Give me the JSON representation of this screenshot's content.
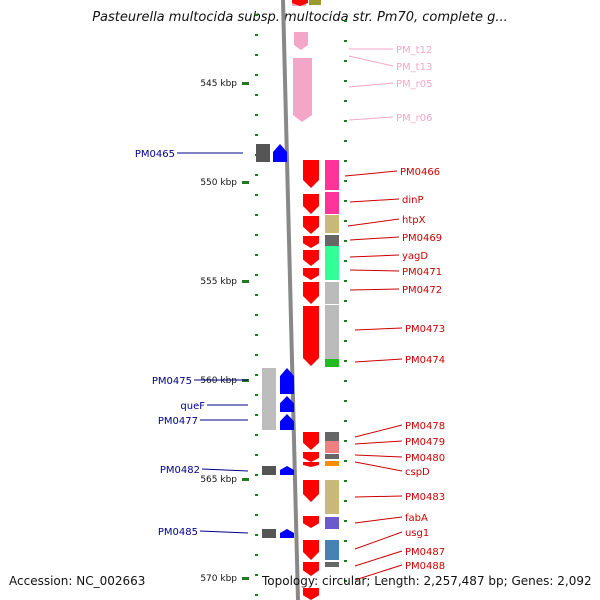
{
  "title": "Pasteurella multocida subsp. multocida str. Pm70, complete g...",
  "accession": "Accession: NC_002663",
  "topology": "Topology: circular; Length: 2,257,487 bp; Genes: 2,092",
  "colors": {
    "rna_pink": "#f4a6c8",
    "cds_red": "#ff0000",
    "left_blue": "#0000ff",
    "left_label": "#00008b",
    "right_label": "#cc0000",
    "tick_green": "#207a20",
    "backbone": "#888888"
  },
  "scale_labels": [
    {
      "kbp": 545,
      "label": "545 kbp"
    },
    {
      "kbp": 550,
      "label": "550 kbp"
    },
    {
      "kbp": 555,
      "label": "555 kbp"
    },
    {
      "kbp": 560,
      "label": "560 kbp"
    },
    {
      "kbp": 565,
      "label": "565 kbp"
    },
    {
      "kbp": 570,
      "label": "570 kbp"
    }
  ],
  "left_labels": [
    "PM0465",
    "PM0475",
    "queF",
    "PM0477",
    "PM0482",
    "PM0485"
  ],
  "right_labels": [
    "PM_t12",
    "PM_t13",
    "PM_r05",
    "PM_r06",
    "PM0466",
    "dinP",
    "htpX",
    "PM0469",
    "yagD",
    "PM0471",
    "PM0472",
    "PM0473",
    "PM0474",
    "PM0478",
    "PM0479",
    "PM0480",
    "cspD",
    "PM0483",
    "fabA",
    "usg1",
    "PM0487",
    "PM0488"
  ],
  "icons": [
    "gene-arrow-icon"
  ]
}
